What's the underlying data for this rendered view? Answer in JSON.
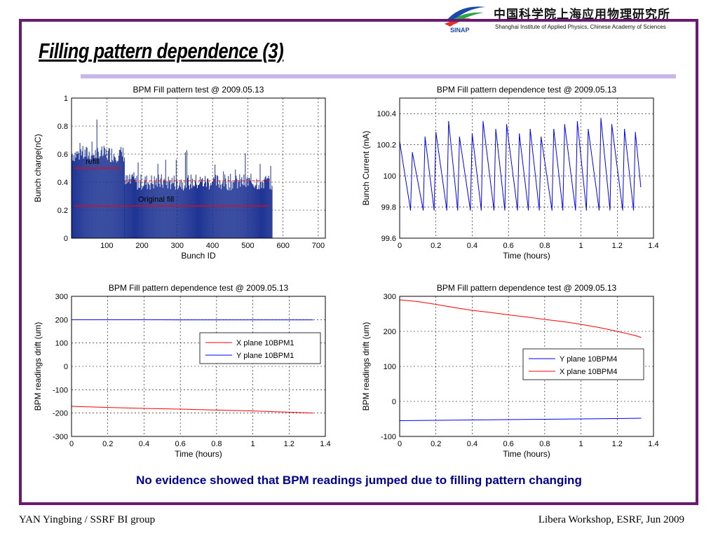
{
  "slide": {
    "title": "Filling pattern dependence (3)",
    "conclusion": "No evidence showed that BPM readings jumped due to filling pattern changing",
    "footer_left": "YAN Yingbing / SSRF BI group",
    "footer_right": "Libera Workshop, ESRF, Jun 2009"
  },
  "logo": {
    "abbr": "SINAP",
    "name_cn": "中国科学院上海应用物理研究所",
    "name_en": "Shanghai Institute of Applied Physics, Chinese Academy of Sciences"
  },
  "colors": {
    "frame": "#6b1a72",
    "rule": "#c9b7e8",
    "bar": "#1f3594",
    "red": "#ff0000",
    "blue": "#0000ff"
  },
  "chart_data": [
    {
      "type": "bar",
      "title": "BPM Fill pattern test @ 2009.05.13",
      "xlabel": "Bunch ID",
      "ylabel": "Bunch charge(nC)",
      "xlim": [
        0,
        720
      ],
      "ylim": [
        0,
        1
      ],
      "xticks": [
        "100",
        "200",
        "300",
        "400",
        "500",
        "600",
        "700"
      ],
      "yticks": [
        "0",
        "0.2",
        "0.4",
        "0.6",
        "0.8",
        "1"
      ],
      "grid": true,
      "bunch_range": [
        1,
        570
      ],
      "segments": [
        {
          "from": 1,
          "to": 150,
          "mean": 0.6
        },
        {
          "from": 150,
          "to": 570,
          "mean": 0.4
        }
      ],
      "annotations": [
        "refill",
        "Original fill"
      ]
    },
    {
      "type": "line",
      "title": "BPM Fill pattern dependence test @ 2009.05.13",
      "xlabel": "Time (hours)",
      "ylabel": "Bunch Current (mA)",
      "xlim": [
        0,
        1.4
      ],
      "ylim": [
        99.6,
        100.5
      ],
      "xticks": [
        "0",
        "0.2",
        "0.4",
        "0.6",
        "0.8",
        "1",
        "1.2",
        "1.4"
      ],
      "yticks": [
        "99.6",
        "99.8",
        "100",
        "100.2",
        "100.4"
      ],
      "grid": true,
      "series": [
        {
          "color": "#0000ff",
          "x": [
            0,
            0.06,
            0.07,
            0.13,
            0.14,
            0.19,
            0.2,
            0.26,
            0.27,
            0.32,
            0.33,
            0.39,
            0.4,
            0.45,
            0.46,
            0.52,
            0.53,
            0.58,
            0.59,
            0.65,
            0.66,
            0.71,
            0.72,
            0.77,
            0.78,
            0.84,
            0.85,
            0.9,
            0.91,
            0.97,
            0.98,
            1.03,
            1.04,
            1.1,
            1.11,
            1.16,
            1.17,
            1.23,
            1.24,
            1.29,
            1.3,
            1.33
          ],
          "y": [
            100.22,
            99.78,
            100.15,
            99.78,
            100.25,
            99.78,
            100.28,
            99.78,
            100.35,
            99.78,
            100.25,
            99.78,
            100.27,
            99.78,
            100.35,
            99.78,
            100.3,
            99.78,
            100.33,
            99.78,
            100.27,
            99.78,
            100.3,
            99.78,
            100.25,
            99.78,
            100.3,
            99.78,
            100.33,
            99.78,
            100.35,
            99.78,
            100.3,
            99.78,
            100.37,
            99.78,
            100.33,
            99.78,
            100.3,
            99.78,
            100.28,
            99.93
          ]
        }
      ]
    },
    {
      "type": "line",
      "title": "BPM Fill pattern dependence test @ 2009.05.13",
      "xlabel": "Time (hours)",
      "ylabel": "BPM readings drift (um)",
      "xlim": [
        0,
        1.4
      ],
      "ylim": [
        -300,
        300
      ],
      "xticks": [
        "0",
        "0.2",
        "0.4",
        "0.6",
        "0.8",
        "1",
        "1.2",
        "1.4"
      ],
      "yticks": [
        "-300",
        "-200",
        "-100",
        "0",
        "100",
        "200",
        "300"
      ],
      "grid": true,
      "legend_position": "right",
      "series": [
        {
          "name": "X plane 10BPM1",
          "color": "#ff0000",
          "x": [
            0,
            0.2,
            0.4,
            0.6,
            0.8,
            1.0,
            1.2,
            1.33
          ],
          "y": [
            -171,
            -176,
            -180,
            -183,
            -187,
            -191,
            -196,
            -200
          ]
        },
        {
          "name": "Y plane 10BPM1",
          "color": "#0000ff",
          "x": [
            0,
            0.2,
            0.4,
            0.6,
            0.8,
            1.0,
            1.2,
            1.33
          ],
          "y": [
            200,
            200,
            200,
            199,
            199,
            199,
            199,
            199
          ]
        }
      ]
    },
    {
      "type": "line",
      "title": "BPM Fill pattern dependence test @ 2009.05.13",
      "xlabel": "Time (hours)",
      "ylabel": "BPM readings drift (um)",
      "xlim": [
        0,
        1.4
      ],
      "ylim": [
        -100,
        300
      ],
      "xticks": [
        "0",
        "0.2",
        "0.4",
        "0.6",
        "0.8",
        "1",
        "1.2",
        "1.4"
      ],
      "yticks": [
        "-100",
        "0",
        "100",
        "200",
        "300"
      ],
      "grid": true,
      "legend_position": "right",
      "series": [
        {
          "name": "Y plane 10BPM4",
          "color": "#0000ff",
          "x": [
            0,
            0.2,
            0.4,
            0.6,
            0.8,
            1.0,
            1.2,
            1.33
          ],
          "y": [
            -55,
            -54,
            -53,
            -52,
            -51,
            -50,
            -49,
            -48
          ]
        },
        {
          "name": "X plane 10BPM4",
          "color": "#ff0000",
          "x": [
            0,
            0.1,
            0.2,
            0.3,
            0.4,
            0.5,
            0.6,
            0.7,
            0.8,
            0.9,
            1.0,
            1.1,
            1.2,
            1.3,
            1.33
          ],
          "y": [
            290,
            285,
            277,
            268,
            260,
            254,
            247,
            241,
            234,
            228,
            220,
            211,
            200,
            188,
            183
          ]
        }
      ]
    }
  ]
}
